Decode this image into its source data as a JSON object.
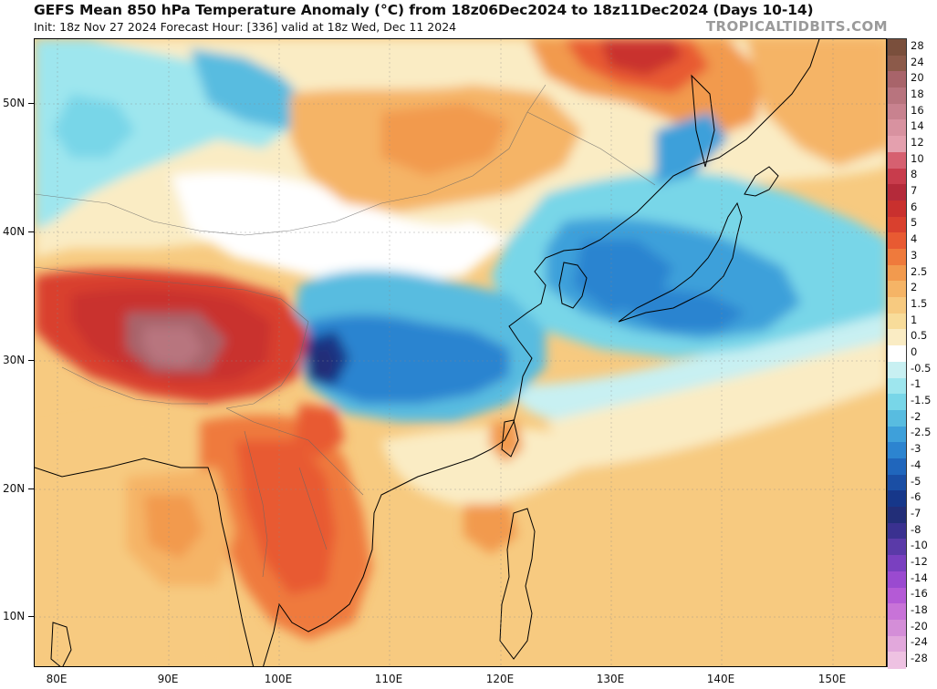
{
  "header": {
    "title": "GEFS Mean 850 hPa Temperature Anomaly (°C) from 18z06Dec2024 to 18z11Dec2024 (Days 10-14)",
    "subtitle": "Init: 18z Nov 27 2024   Forecast Hour: [336]   valid at 18z Wed, Dec 11 2024",
    "brand": "TROPICALTIDBITS.COM"
  },
  "axes": {
    "lat_labels": [
      "50N",
      "40N",
      "30N",
      "20N",
      "10N"
    ],
    "lon_labels": [
      "80E",
      "90E",
      "100E",
      "110E",
      "120E",
      "130E",
      "140E",
      "150E"
    ]
  },
  "legend": {
    "labels": [
      "28",
      "24",
      "20",
      "18",
      "16",
      "14",
      "12",
      "10",
      "8",
      "7",
      "6",
      "5",
      "4",
      "3",
      "2.5",
      "2",
      "1.5",
      "1",
      "0.5",
      "0",
      "-0.5",
      "-1",
      "-1.5",
      "-2",
      "-2.5",
      "-3",
      "-4",
      "-5",
      "-6",
      "-7",
      "-8",
      "-10",
      "-12",
      "-14",
      "-16",
      "-18",
      "-20",
      "-24",
      "-28"
    ],
    "colors": [
      "#7a4f3c",
      "#8c5a4a",
      "#a8646a",
      "#b8747e",
      "#c8828f",
      "#d892a0",
      "#e4a0ae",
      "#d66070",
      "#c83c4c",
      "#b42a3a",
      "#c9302e",
      "#d9402e",
      "#e85a32",
      "#ef7a3c",
      "#f29a4e",
      "#f5b466",
      "#f7ca80",
      "#f8dc9a",
      "#faecc4",
      "#ffffff",
      "#c8f0f2",
      "#9ee6ee",
      "#78d6e8",
      "#58bce0",
      "#3ea0da",
      "#2c84d0",
      "#2066bc",
      "#1a4ea4",
      "#16378a",
      "#222e78",
      "#3a3190",
      "#5a3aa8",
      "#7a40c0",
      "#9a4ad0",
      "#b45ad6",
      "#c873d8",
      "#d48ed8",
      "#e2a8dc",
      "#eec2e2"
    ]
  }
}
